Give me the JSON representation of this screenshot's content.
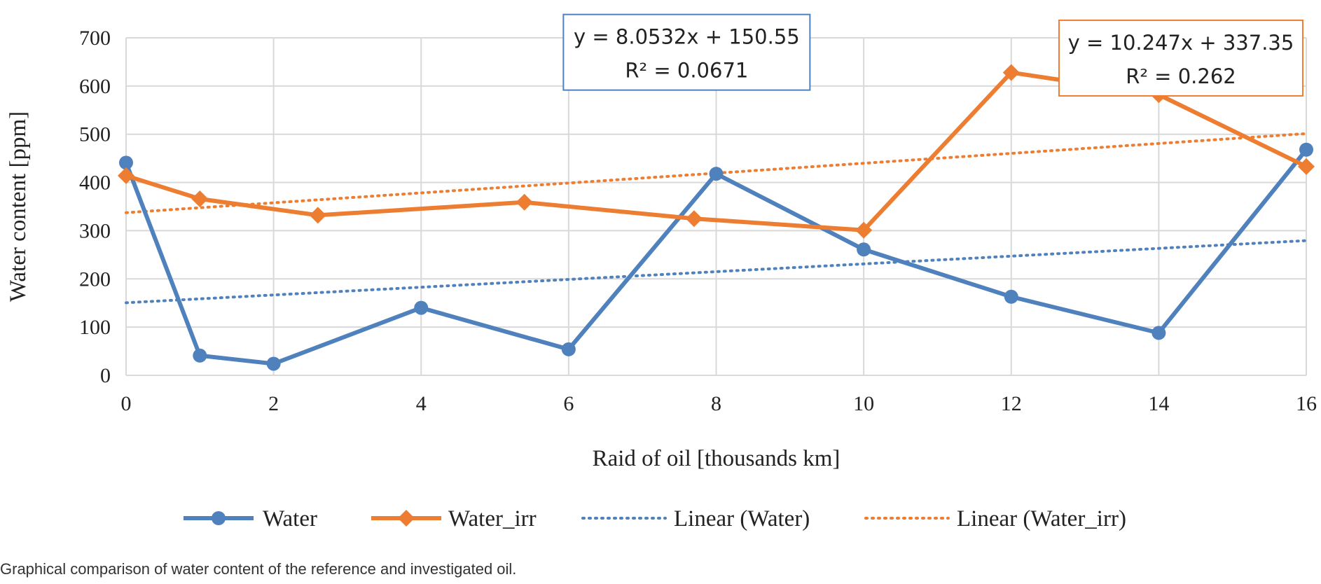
{
  "chart_data": {
    "type": "line",
    "xlabel": "Raid of oil [thousands km]",
    "ylabel": "Water content [ppm]",
    "xlim": [
      0,
      16
    ],
    "ylim": [
      0,
      700
    ],
    "xticks": [
      0,
      2,
      4,
      6,
      8,
      10,
      12,
      14,
      16
    ],
    "yticks": [
      0,
      100,
      200,
      300,
      400,
      500,
      600,
      700
    ],
    "grid": true,
    "legend_position": "bottom",
    "series": [
      {
        "name": "Water",
        "color": "#4f81bd",
        "marker": "circle",
        "style": "solid",
        "x": [
          0,
          1,
          2,
          4,
          6,
          8,
          10,
          12,
          14,
          16
        ],
        "y": [
          441,
          41,
          24,
          140,
          54,
          418,
          261,
          163,
          88,
          468
        ]
      },
      {
        "name": "Water_irr",
        "color": "#ed7d31",
        "marker": "diamond",
        "style": "solid",
        "x": [
          0,
          1,
          2.6,
          5.4,
          7.7,
          10,
          12,
          14,
          16
        ],
        "y": [
          414,
          366,
          332,
          359,
          325,
          301,
          628,
          582,
          433
        ]
      },
      {
        "name": "Linear (Water)",
        "color": "#4f81bd",
        "style": "dotted",
        "trend_of": "Water",
        "slope": 8.0532,
        "intercept": 150.55
      },
      {
        "name": "Linear (Water_irr)",
        "color": "#ed7d31",
        "style": "dotted",
        "trend_of": "Water_irr",
        "slope": 10.247,
        "intercept": 337.35
      }
    ],
    "annotations": [
      {
        "line1": "y = 8.0532x + 150.55",
        "line2": "R² = 0.0671",
        "color": "#4f81bd",
        "x_center": 7.6,
        "y_center": 670
      },
      {
        "line1": "y = 10.247x + 337.35",
        "line2": "R² = 0.262",
        "color": "#ed7d31",
        "x_center": 14.3,
        "y_center": 658
      }
    ]
  },
  "caption": "Graphical comparison of water content of the reference and investigated oil."
}
